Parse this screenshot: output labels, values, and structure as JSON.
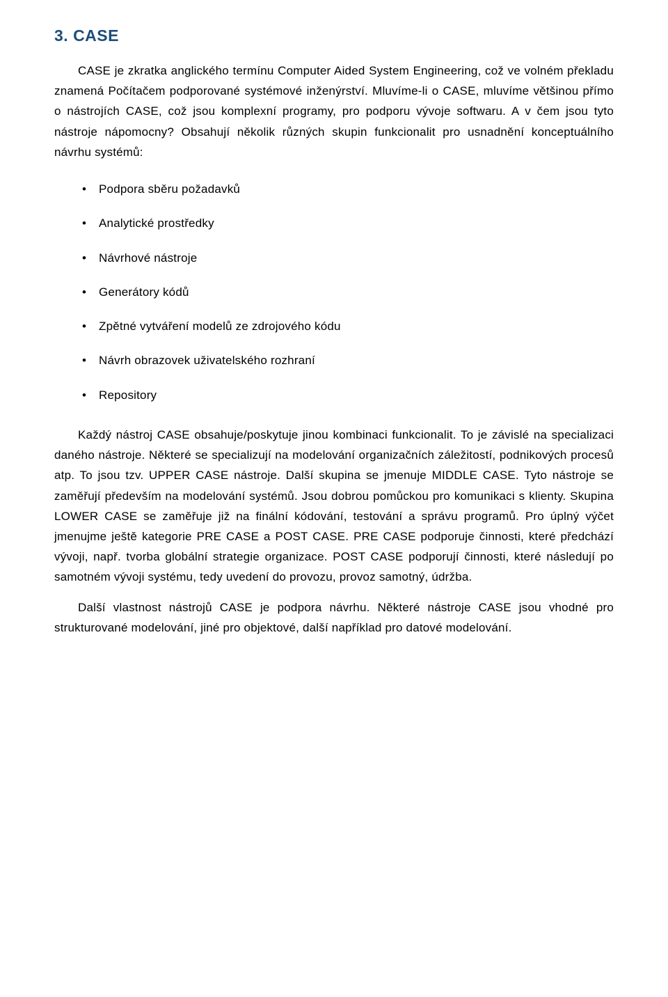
{
  "heading": "3. CASE",
  "para1": "CASE je zkratka anglického termínu Computer Aided System Engineering, což ve volném překladu znamená Počítačem podporované systémové inženýrství. Mluvíme-li o CASE, mluvíme většinou přímo o nástrojích CASE, což jsou komplexní programy, pro podporu vývoje softwaru. A v čem jsou tyto nástroje nápomocny? Obsahují několik různých skupin funkcionalit pro usnadnění konceptuálního návrhu systémů:",
  "bullets": [
    "Podpora sběru požadavků",
    "Analytické prostředky",
    "Návrhové nástroje",
    "Generátory kódů",
    "Zpětné vytváření modelů ze zdrojového kódu",
    "Návrh obrazovek uživatelského rozhraní",
    "Repository"
  ],
  "para2": "Každý nástroj CASE obsahuje/poskytuje jinou kombinaci funkcionalit. To je závislé na specializaci daného nástroje. Některé se specializují na modelování organizačních záležitostí, podnikových procesů atp. To jsou tzv. UPPER CASE nástroje. Další skupina se jmenuje MIDDLE CASE. Tyto nástroje se zaměřují především na modelování systémů. Jsou dobrou pomůckou pro komunikaci s klienty. Skupina LOWER CASE se zaměřuje již na finální kódování, testování a správu programů. Pro úplný výčet jmenujme ještě kategorie PRE CASE a POST CASE. PRE CASE podporuje činnosti, které předchází vývoji, např. tvorba globální strategie organizace. POST CASE podporují činnosti, které následují po samotném vývoji systému, tedy uvedení do provozu, provoz samotný, údržba.",
  "para3": "Další vlastnost nástrojů CASE je podpora návrhu. Některé nástroje CASE jsou vhodné pro strukturované modelování, jiné pro objektové, další například pro datové modelování."
}
